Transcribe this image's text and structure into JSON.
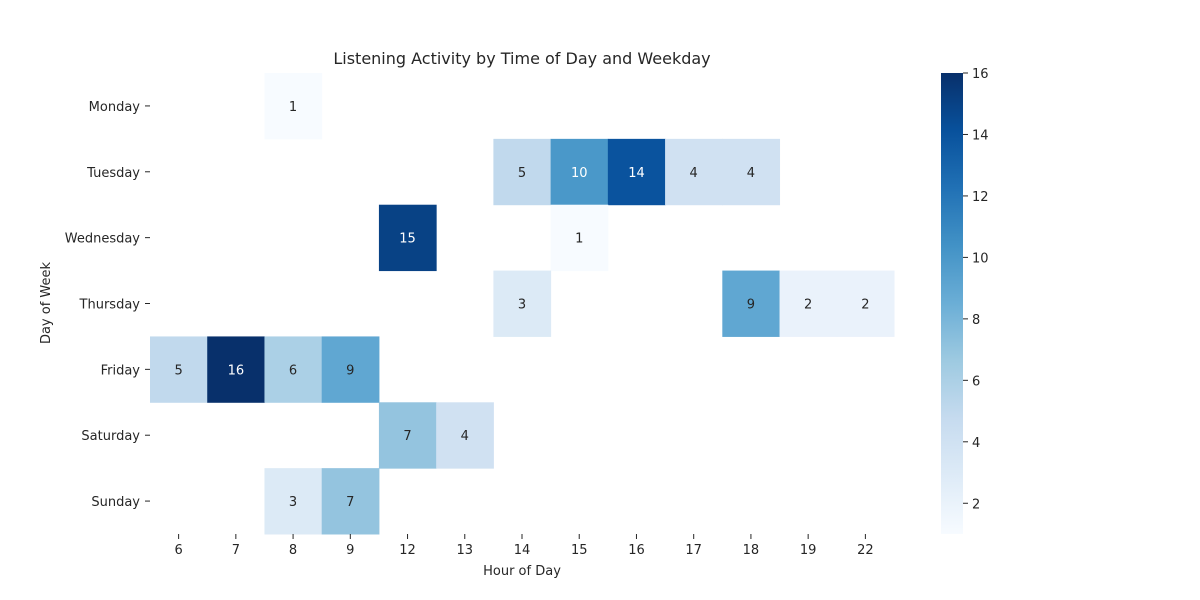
{
  "chart_data": {
    "type": "heatmap",
    "title": "Listening Activity by Time of Day and Weekday",
    "xlabel": "Hour of Day",
    "ylabel": "Day of Week",
    "x_categories": [
      "6",
      "7",
      "8",
      "9",
      "12",
      "13",
      "14",
      "15",
      "16",
      "17",
      "18",
      "19",
      "22"
    ],
    "y_categories": [
      "Monday",
      "Tuesday",
      "Wednesday",
      "Thursday",
      "Friday",
      "Saturday",
      "Sunday"
    ],
    "values": [
      [
        null,
        null,
        1,
        null,
        null,
        null,
        null,
        null,
        null,
        null,
        null,
        null,
        null
      ],
      [
        null,
        null,
        null,
        null,
        null,
        null,
        5,
        10,
        14,
        4,
        4,
        null,
        null
      ],
      [
        null,
        null,
        null,
        null,
        15,
        null,
        null,
        1,
        null,
        null,
        null,
        null,
        null
      ],
      [
        null,
        null,
        null,
        null,
        null,
        null,
        3,
        null,
        null,
        null,
        9,
        2,
        2
      ],
      [
        5,
        16,
        6,
        9,
        null,
        null,
        null,
        null,
        null,
        null,
        null,
        null,
        null
      ],
      [
        null,
        null,
        null,
        null,
        7,
        4,
        null,
        null,
        null,
        null,
        null,
        null,
        null
      ],
      [
        null,
        null,
        3,
        7,
        null,
        null,
        null,
        null,
        null,
        null,
        null,
        null,
        null
      ]
    ],
    "colormap": "Blues",
    "colorbar": {
      "range": [
        1,
        16
      ],
      "ticks": [
        2,
        4,
        6,
        8,
        10,
        12,
        14,
        16
      ]
    },
    "annotated": true,
    "grid": false
  }
}
